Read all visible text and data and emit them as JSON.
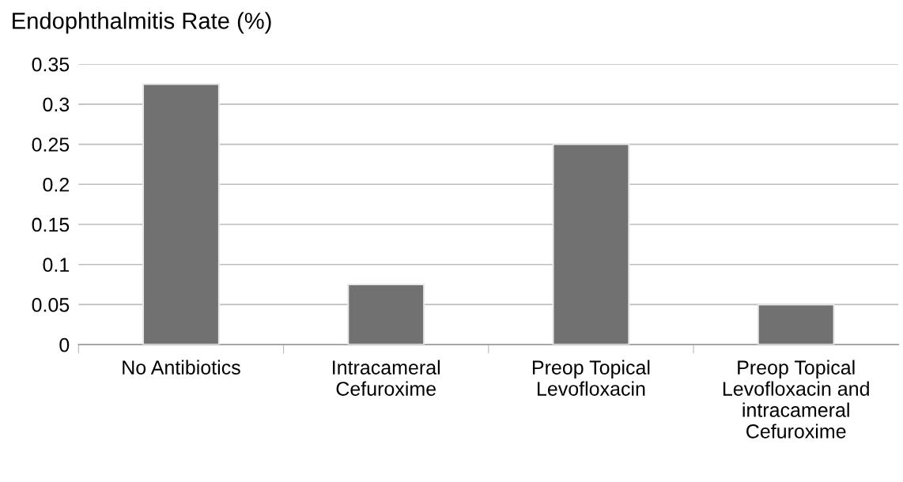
{
  "chart_data": {
    "type": "bar",
    "title": "Endophthalmitis Rate (%)",
    "categories": [
      "No Antibiotics",
      "Intracameral\nCefuroxime",
      "Preop Topical\nLevofloxacin",
      "Preop Topical\nLevofloxacin and\nintracameral\nCefuroxime"
    ],
    "values": [
      0.325,
      0.075,
      0.25,
      0.05
    ],
    "color": "#717171",
    "ylim": [
      0,
      0.35
    ],
    "yticks": [
      0,
      0.05,
      0.1,
      0.15,
      0.2,
      0.25,
      0.3,
      0.35
    ],
    "grid": "y"
  }
}
